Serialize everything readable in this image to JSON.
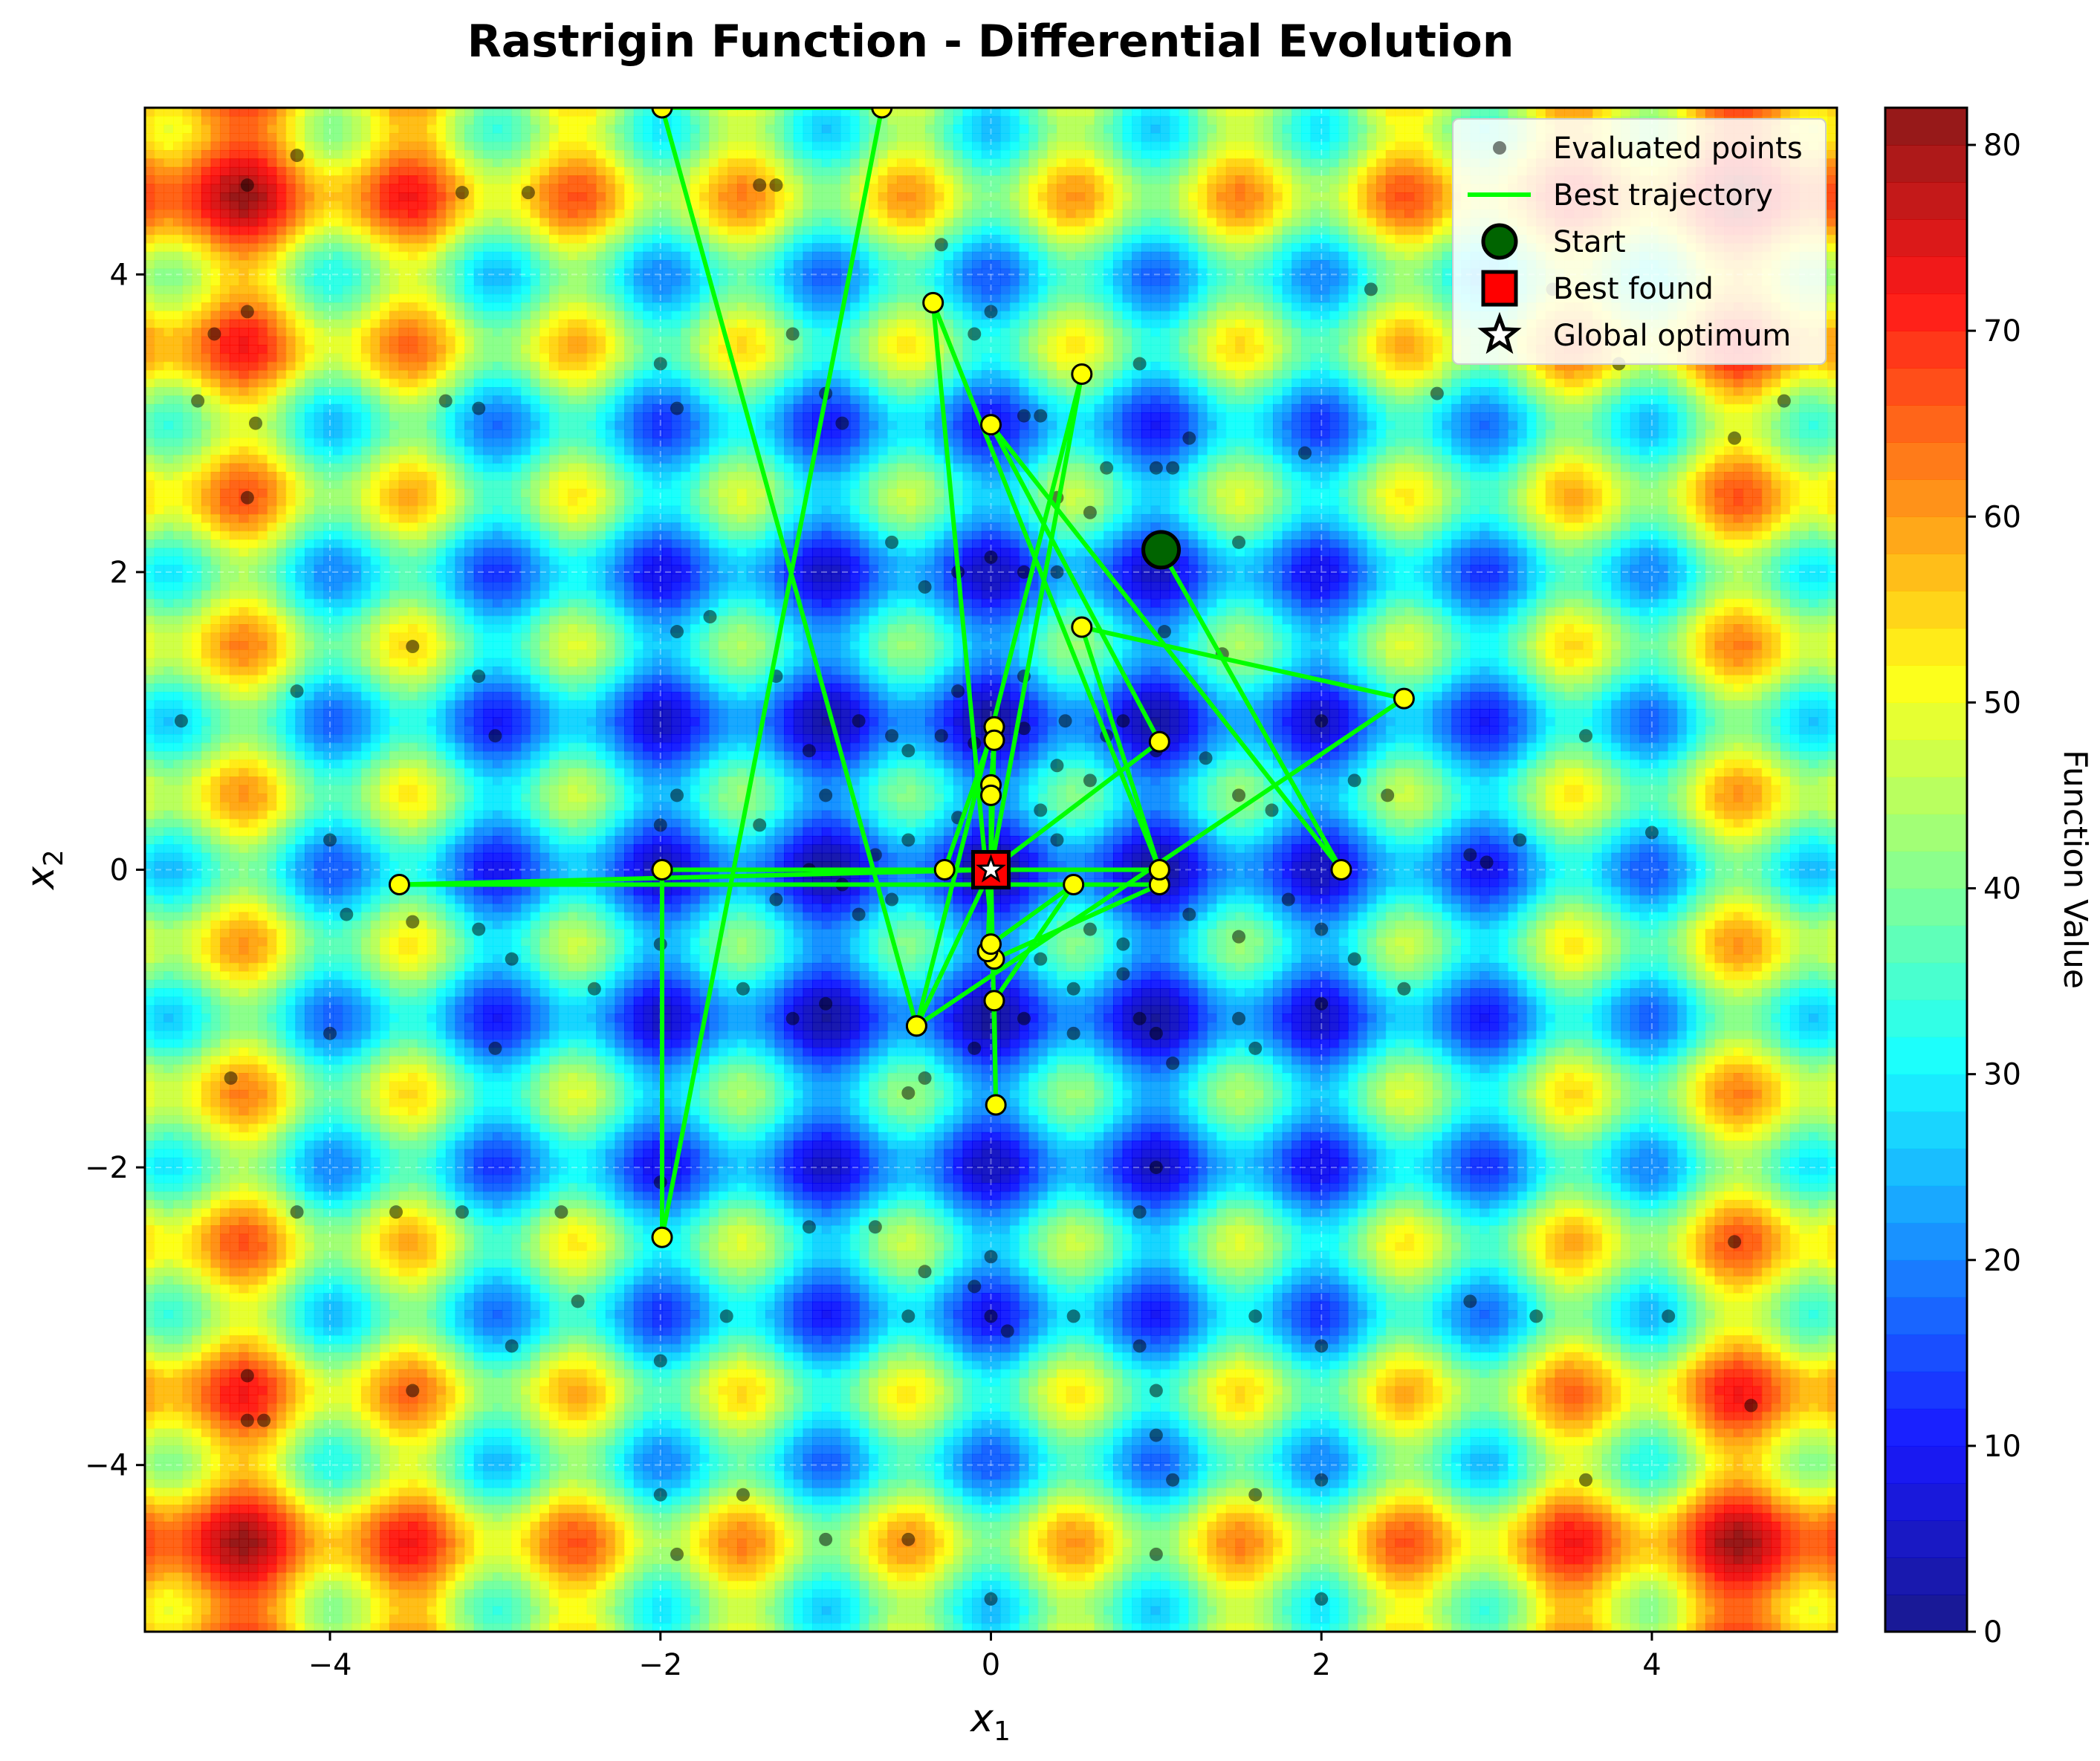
{
  "chart_data": {
    "type": "scatter",
    "title": "Rastrigin Function - Differential Evolution",
    "xlabel_base": "x",
    "xlabel_sub": "1",
    "ylabel_base": "x",
    "ylabel_sub": "2",
    "xlim": [
      -5.12,
      5.12
    ],
    "ylim": [
      -5.12,
      5.12
    ],
    "xticks": [
      -4,
      -2,
      0,
      2,
      4
    ],
    "yticks": [
      -4,
      -2,
      0,
      2,
      4
    ],
    "xtick_labels": [
      "−4",
      "−2",
      "0",
      "2",
      "4"
    ],
    "ytick_labels": [
      "−4",
      "−2",
      "0",
      "2",
      "4"
    ],
    "grid": true,
    "legend_position": "top-right",
    "colormap": "jet",
    "colorbar": {
      "label": "Function Value",
      "min": 0,
      "max": 82,
      "ticks": [
        0,
        10,
        20,
        30,
        40,
        50,
        60,
        70,
        80
      ],
      "tick_labels": [
        "0",
        "10",
        "20",
        "30",
        "40",
        "50",
        "60",
        "70",
        "80"
      ]
    },
    "legend": [
      {
        "key": "evaluated",
        "label": "Evaluated points"
      },
      {
        "key": "trajectory",
        "label": "Best trajectory"
      },
      {
        "key": "start",
        "label": "Start"
      },
      {
        "key": "best",
        "label": "Best found"
      },
      {
        "key": "optimum",
        "label": "Global optimum"
      }
    ],
    "colors": {
      "trajectory": "#00ff00",
      "trajectory_marker": "#ffff00",
      "start": "#006400",
      "best": "#ff0000",
      "evaluated": "#000000"
    },
    "series": [
      {
        "name": "Best trajectory",
        "points": [
          [
            1.03,
            2.15
          ],
          [
            2.12,
            0.0
          ],
          [
            0.0,
            2.99
          ],
          [
            1.02,
            0.86
          ],
          [
            0.0,
            0.0
          ],
          [
            -0.45,
            -1.05
          ],
          [
            0.55,
            3.33
          ],
          [
            0.0,
            0.0
          ],
          [
            -3.58,
            -0.1
          ],
          [
            1.02,
            -0.1
          ],
          [
            0.02,
            -0.6
          ],
          [
            -0.35,
            3.81
          ],
          [
            1.02,
            0.0
          ],
          [
            -1.99,
            0.0
          ],
          [
            -1.99,
            -2.47
          ],
          [
            -0.66,
            5.12
          ],
          [
            -1.99,
            5.12
          ],
          [
            -0.45,
            -1.05
          ],
          [
            2.5,
            1.15
          ],
          [
            0.55,
            1.63
          ],
          [
            1.02,
            0.0
          ],
          [
            -0.28,
            0.0
          ],
          [
            0.02,
            0.96
          ],
          [
            0.0,
            0.0
          ],
          [
            0.02,
            0.87
          ],
          [
            0.0,
            0.57
          ],
          [
            0.0,
            0.5
          ],
          [
            0.0,
            0.0
          ],
          [
            -0.02,
            -0.55
          ],
          [
            0.0,
            -0.5
          ],
          [
            0.5,
            -0.1
          ],
          [
            0.02,
            -0.88
          ],
          [
            0.03,
            -1.58
          ],
          [
            0.0,
            0.0
          ],
          [
            0.02,
            -0.03
          ]
        ]
      },
      {
        "name": "Evaluated points",
        "points": [
          [
            -4.5,
            4.6
          ],
          [
            -4.7,
            3.6
          ],
          [
            -4.5,
            3.75
          ],
          [
            -4.2,
            4.8
          ],
          [
            -4.8,
            3.15
          ],
          [
            -4.45,
            3.0
          ],
          [
            -3.2,
            4.55
          ],
          [
            -3.1,
            3.1
          ],
          [
            -3.3,
            3.15
          ],
          [
            -2.8,
            4.55
          ],
          [
            -2.0,
            3.4
          ],
          [
            -1.9,
            3.1
          ],
          [
            -1.0,
            3.2
          ],
          [
            -0.9,
            3.0
          ],
          [
            -1.2,
            3.6
          ],
          [
            -1.4,
            4.6
          ],
          [
            -1.3,
            4.6
          ],
          [
            -0.3,
            4.2
          ],
          [
            -0.1,
            3.6
          ],
          [
            0.0,
            3.75
          ],
          [
            0.3,
            3.05
          ],
          [
            0.2,
            3.05
          ],
          [
            0.4,
            2.5
          ],
          [
            0.6,
            2.4
          ],
          [
            0.7,
            2.7
          ],
          [
            0.9,
            3.4
          ],
          [
            1.0,
            2.7
          ],
          [
            1.2,
            2.9
          ],
          [
            1.1,
            2.7
          ],
          [
            1.5,
            2.2
          ],
          [
            1.9,
            2.8
          ],
          [
            2.3,
            3.9
          ],
          [
            2.7,
            3.2
          ],
          [
            3.4,
            3.9
          ],
          [
            3.8,
            3.4
          ],
          [
            4.5,
            2.9
          ],
          [
            4.8,
            3.15
          ],
          [
            -3.0,
            0.9
          ],
          [
            -3.1,
            1.3
          ],
          [
            -3.5,
            1.5
          ],
          [
            -4.2,
            1.2
          ],
          [
            -4.9,
            1.0
          ],
          [
            -4.0,
            0.2
          ],
          [
            -3.9,
            -0.3
          ],
          [
            -3.5,
            -0.35
          ],
          [
            -3.1,
            -0.4
          ],
          [
            -2.9,
            -0.6
          ],
          [
            -2.0,
            0.3
          ],
          [
            -1.9,
            0.5
          ],
          [
            -1.0,
            0.5
          ],
          [
            -1.1,
            0.8
          ],
          [
            -1.3,
            1.3
          ],
          [
            -1.9,
            1.6
          ],
          [
            -1.7,
            1.7
          ],
          [
            -0.6,
            2.2
          ],
          [
            -0.4,
            1.9
          ],
          [
            -0.2,
            2.0
          ],
          [
            0.0,
            2.1
          ],
          [
            0.2,
            2.0
          ],
          [
            0.4,
            2.0
          ],
          [
            -0.8,
            1.0
          ],
          [
            -0.6,
            0.9
          ],
          [
            -0.5,
            0.8
          ],
          [
            -0.3,
            0.9
          ],
          [
            -0.1,
            0.85
          ],
          [
            0.2,
            0.95
          ],
          [
            0.45,
            1.0
          ],
          [
            0.7,
            0.9
          ],
          [
            0.8,
            1.0
          ],
          [
            1.0,
            0.8
          ],
          [
            1.3,
            0.75
          ],
          [
            1.5,
            0.5
          ],
          [
            1.7,
            0.4
          ],
          [
            2.0,
            1.0
          ],
          [
            2.2,
            0.6
          ],
          [
            2.4,
            0.5
          ],
          [
            2.9,
            0.1
          ],
          [
            3.2,
            0.2
          ],
          [
            3.6,
            0.9
          ],
          [
            4.0,
            0.25
          ],
          [
            -1.1,
            0.0
          ],
          [
            -0.9,
            -0.1
          ],
          [
            -0.7,
            0.1
          ],
          [
            -0.6,
            -0.2
          ],
          [
            -0.5,
            0.2
          ],
          [
            -0.2,
            0.35
          ],
          [
            0.3,
            0.4
          ],
          [
            0.4,
            0.2
          ],
          [
            0.6,
            -0.4
          ],
          [
            0.8,
            -0.5
          ],
          [
            1.2,
            -0.3
          ],
          [
            1.5,
            -0.45
          ],
          [
            1.8,
            -0.2
          ],
          [
            2.0,
            -0.4
          ],
          [
            2.0,
            -0.9
          ],
          [
            2.2,
            -0.6
          ],
          [
            2.5,
            -0.8
          ],
          [
            -1.0,
            -0.9
          ],
          [
            -1.2,
            -1.0
          ],
          [
            -1.5,
            -0.8
          ],
          [
            -2.0,
            -0.5
          ],
          [
            -2.4,
            -0.8
          ],
          [
            -3.0,
            -1.2
          ],
          [
            -4.0,
            -1.1
          ],
          [
            -4.6,
            -1.4
          ],
          [
            -0.5,
            -1.5
          ],
          [
            -0.4,
            -1.4
          ],
          [
            -0.1,
            -1.2
          ],
          [
            0.2,
            -1.0
          ],
          [
            0.5,
            -1.1
          ],
          [
            0.9,
            -1.0
          ],
          [
            1.0,
            -1.1
          ],
          [
            1.1,
            -1.3
          ],
          [
            1.5,
            -1.0
          ],
          [
            1.6,
            -1.2
          ],
          [
            1.0,
            -2.0
          ],
          [
            0.9,
            -2.3
          ],
          [
            0.0,
            -2.6
          ],
          [
            -0.1,
            -2.8
          ],
          [
            -0.4,
            -2.7
          ],
          [
            -0.7,
            -2.4
          ],
          [
            -1.1,
            -2.4
          ],
          [
            -2.0,
            -2.1
          ],
          [
            -2.6,
            -2.3
          ],
          [
            -3.2,
            -2.3
          ],
          [
            -2.5,
            -2.9
          ],
          [
            -2.9,
            -3.2
          ],
          [
            -2.0,
            -3.3
          ],
          [
            -1.6,
            -3.0
          ],
          [
            -0.5,
            -3.0
          ],
          [
            0.0,
            -3.0
          ],
          [
            0.1,
            -3.1
          ],
          [
            0.5,
            -3.0
          ],
          [
            0.9,
            -3.2
          ],
          [
            1.0,
            -3.5
          ],
          [
            1.0,
            -3.8
          ],
          [
            1.1,
            -4.1
          ],
          [
            1.6,
            -3.0
          ],
          [
            2.0,
            -3.2
          ],
          [
            2.9,
            -2.9
          ],
          [
            3.3,
            -3.0
          ],
          [
            4.1,
            -3.0
          ],
          [
            4.6,
            -3.6
          ],
          [
            3.6,
            -4.1
          ],
          [
            2.0,
            -4.1
          ],
          [
            1.6,
            -4.2
          ],
          [
            1.0,
            -4.6
          ],
          [
            0.0,
            -4.9
          ],
          [
            -0.5,
            -4.5
          ],
          [
            -1.0,
            -4.5
          ],
          [
            -1.5,
            -4.2
          ],
          [
            -2.0,
            -4.2
          ],
          [
            -3.5,
            -3.5
          ],
          [
            -4.5,
            -3.4
          ],
          [
            -4.5,
            -3.7
          ],
          [
            -4.4,
            -3.7
          ],
          [
            -1.9,
            -4.6
          ],
          [
            2.0,
            -4.9
          ],
          [
            -3.6,
            -2.3
          ],
          [
            -4.2,
            -2.3
          ],
          [
            0.3,
            -0.6
          ],
          [
            0.5,
            -0.8
          ],
          [
            0.8,
            -0.7
          ],
          [
            0.4,
            0.7
          ],
          [
            0.6,
            0.6
          ],
          [
            -0.8,
            -0.3
          ],
          [
            -1.3,
            -0.2
          ],
          [
            -1.4,
            0.3
          ],
          [
            -0.2,
            1.2
          ],
          [
            0.2,
            1.3
          ],
          [
            1.05,
            1.6
          ],
          [
            1.4,
            1.45
          ],
          [
            3.0,
            0.05
          ],
          [
            4.5,
            -2.5
          ],
          [
            -4.5,
            2.5
          ]
        ]
      }
    ],
    "start": [
      1.03,
      2.15
    ],
    "best_found": [
      0.0,
      0.0
    ],
    "global_optimum": [
      0.0,
      0.0
    ]
  }
}
